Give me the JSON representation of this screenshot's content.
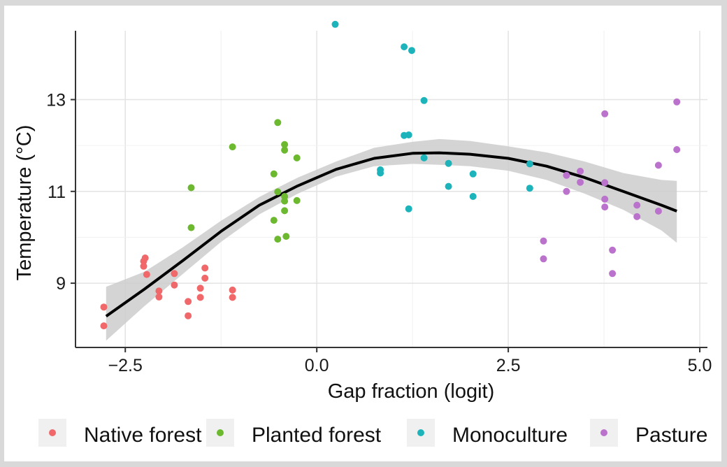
{
  "chart_data": {
    "type": "scatter",
    "title": "",
    "xlabel": "Gap fraction (logit)",
    "ylabel": "Temperature (°C)",
    "xlim": [
      -3.15,
      5.1
    ],
    "ylim": [
      7.6,
      14.5
    ],
    "x_ticks": [
      -2.5,
      0.0,
      2.5,
      5.0
    ],
    "x_tick_labels": [
      "−2.5",
      "0.0",
      "2.5",
      "5.0"
    ],
    "y_ticks": [
      9,
      11,
      13
    ],
    "y_tick_labels": [
      "9",
      "11",
      "13"
    ],
    "grid": true,
    "legend_position": "bottom",
    "series": [
      {
        "name": "Native forest",
        "color": "#F0686A",
        "points": [
          [
            -2.78,
            8.48
          ],
          [
            -2.78,
            8.07
          ],
          [
            -2.26,
            9.48
          ],
          [
            -2.24,
            9.55
          ],
          [
            -2.26,
            9.37
          ],
          [
            -2.22,
            9.19
          ],
          [
            -2.06,
            8.83
          ],
          [
            -2.06,
            8.7
          ],
          [
            -1.86,
            9.21
          ],
          [
            -1.86,
            8.96
          ],
          [
            -1.68,
            8.6
          ],
          [
            -1.68,
            8.29
          ],
          [
            -1.52,
            8.89
          ],
          [
            -1.52,
            8.69
          ],
          [
            -1.46,
            9.33
          ],
          [
            -1.46,
            9.11
          ],
          [
            -1.1,
            8.85
          ],
          [
            -1.1,
            8.69
          ]
        ]
      },
      {
        "name": "Planted forest",
        "color": "#6CB92F",
        "points": [
          [
            -1.64,
            11.08
          ],
          [
            -1.64,
            10.21
          ],
          [
            -1.1,
            11.97
          ],
          [
            -0.56,
            11.38
          ],
          [
            -0.56,
            10.37
          ],
          [
            -0.51,
            12.5
          ],
          [
            -0.51,
            10.99
          ],
          [
            -0.51,
            9.96
          ],
          [
            -0.42,
            12.02
          ],
          [
            -0.42,
            11.9
          ],
          [
            -0.42,
            10.89
          ],
          [
            -0.42,
            10.79
          ],
          [
            -0.42,
            10.58
          ],
          [
            -0.4,
            10.02
          ],
          [
            -0.26,
            11.73
          ],
          [
            -0.26,
            10.8
          ]
        ]
      },
      {
        "name": "Monoculture",
        "color": "#1CB4BA",
        "points": [
          [
            0.24,
            14.64
          ],
          [
            0.83,
            11.47
          ],
          [
            0.83,
            11.4
          ],
          [
            1.14,
            14.15
          ],
          [
            1.14,
            12.22
          ],
          [
            1.2,
            12.23
          ],
          [
            1.2,
            10.62
          ],
          [
            1.24,
            14.07
          ],
          [
            1.4,
            12.98
          ],
          [
            1.4,
            11.73
          ],
          [
            1.72,
            11.61
          ],
          [
            1.72,
            11.11
          ],
          [
            2.04,
            11.38
          ],
          [
            2.04,
            10.89
          ],
          [
            2.78,
            11.6
          ],
          [
            2.78,
            11.07
          ]
        ]
      },
      {
        "name": "Pasture",
        "color": "#BB72CC",
        "points": [
          [
            2.96,
            9.92
          ],
          [
            2.96,
            9.53
          ],
          [
            3.26,
            11.35
          ],
          [
            3.26,
            11.0
          ],
          [
            3.44,
            11.44
          ],
          [
            3.44,
            11.2
          ],
          [
            3.76,
            12.69
          ],
          [
            3.76,
            11.19
          ],
          [
            3.76,
            10.83
          ],
          [
            3.76,
            10.66
          ],
          [
            3.86,
            9.72
          ],
          [
            3.86,
            9.21
          ],
          [
            4.18,
            10.7
          ],
          [
            4.18,
            10.45
          ],
          [
            4.46,
            11.57
          ],
          [
            4.46,
            10.57
          ],
          [
            4.7,
            12.95
          ],
          [
            4.7,
            11.91
          ]
        ]
      }
    ],
    "smooth": {
      "color": "#000000",
      "band_color": "#cccccc",
      "x": [
        -2.75,
        -2.25,
        -1.75,
        -1.25,
        -0.75,
        -0.25,
        0.25,
        0.75,
        1.25,
        1.6,
        2.0,
        2.5,
        3.0,
        3.5,
        4.0,
        4.5,
        4.7
      ],
      "y": [
        8.28,
        8.87,
        9.49,
        10.13,
        10.7,
        11.12,
        11.48,
        11.72,
        11.83,
        11.84,
        11.81,
        11.72,
        11.55,
        11.3,
        11.0,
        10.7,
        10.57
      ],
      "ymin": [
        7.75,
        8.5,
        9.2,
        9.9,
        10.5,
        10.95,
        11.32,
        11.55,
        11.6,
        11.58,
        11.55,
        11.45,
        11.25,
        10.95,
        10.6,
        10.15,
        9.88
      ],
      "ymax": [
        8.92,
        9.25,
        9.78,
        10.36,
        10.88,
        11.3,
        11.65,
        11.95,
        12.08,
        12.14,
        12.1,
        11.98,
        11.85,
        11.65,
        11.4,
        11.25,
        11.23
      ]
    }
  }
}
